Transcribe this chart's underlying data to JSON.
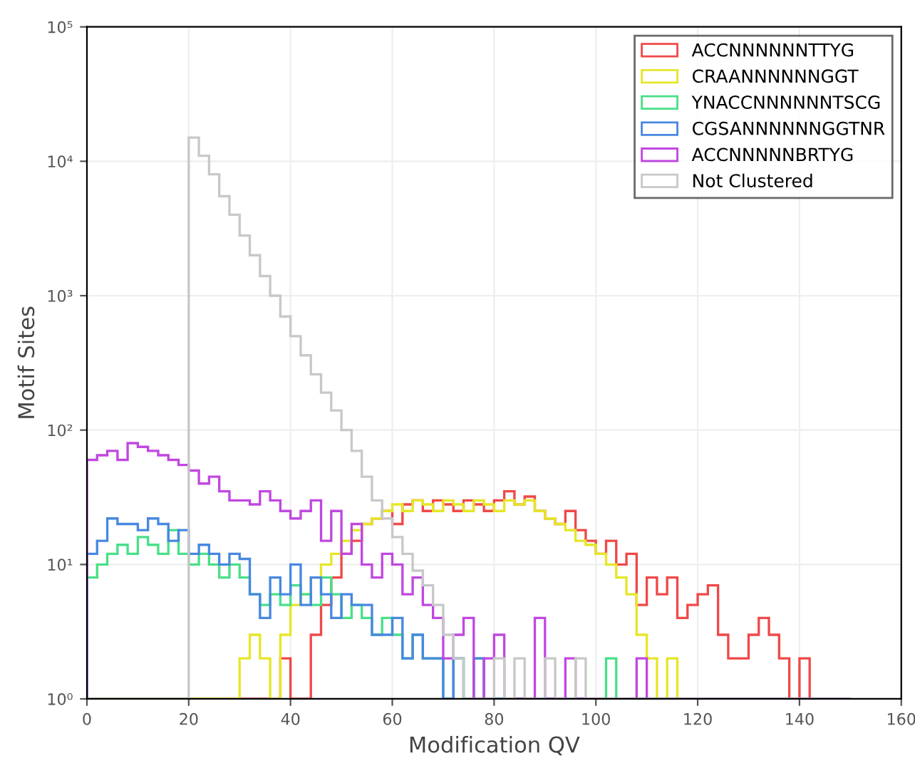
{
  "chart_data": {
    "type": "histogram",
    "xlabel": "Modification QV",
    "ylabel": "Motif Sites",
    "bins": [
      0,
      2,
      4,
      6,
      8,
      10,
      12,
      14,
      16,
      18,
      20,
      22,
      24,
      26,
      28,
      30,
      32,
      34,
      36,
      38,
      40,
      42,
      44,
      46,
      48,
      50,
      52,
      54,
      56,
      58,
      60,
      62,
      64,
      66,
      68,
      70,
      72,
      74,
      76,
      78,
      80,
      82,
      84,
      86,
      88,
      90,
      92,
      94,
      96,
      98,
      100,
      102,
      104,
      106,
      108,
      110,
      112,
      114,
      116,
      118,
      120,
      122,
      124,
      126,
      128,
      130,
      132,
      134,
      136,
      138,
      140,
      142,
      144,
      146,
      148,
      150
    ],
    "series": [
      {
        "name": "ACCNNNNNNTTYG",
        "color": "#f04848",
        "values": [
          1,
          1,
          1,
          1,
          1,
          1,
          1,
          1,
          1,
          1,
          1,
          1,
          1,
          1,
          1,
          1,
          1,
          1,
          1,
          2,
          1,
          1,
          3,
          5,
          8,
          12,
          15,
          20,
          22,
          25,
          20,
          28,
          30,
          25,
          30,
          28,
          25,
          30,
          28,
          25,
          30,
          35,
          28,
          32,
          25,
          22,
          20,
          25,
          18,
          15,
          12,
          15,
          10,
          12,
          5,
          8,
          6,
          8,
          4,
          5,
          6,
          7,
          3,
          2,
          2,
          3,
          4,
          3,
          2,
          1,
          2,
          1,
          1,
          1,
          1
        ]
      },
      {
        "name": "CRAANNNNNNGGT",
        "color": "#e6e628",
        "values": [
          1,
          1,
          1,
          1,
          1,
          1,
          1,
          1,
          1,
          1,
          1,
          1,
          1,
          1,
          1,
          2,
          3,
          2,
          1,
          3,
          5,
          6,
          8,
          10,
          12,
          15,
          18,
          20,
          22,
          25,
          28,
          25,
          30,
          28,
          25,
          30,
          28,
          25,
          30,
          28,
          25,
          30,
          28,
          30,
          25,
          22,
          20,
          18,
          15,
          14,
          12,
          10,
          8,
          6,
          3,
          2,
          1,
          2,
          1,
          1,
          1,
          1,
          1,
          1,
          1,
          1,
          1,
          1,
          1,
          1,
          1,
          1,
          1,
          1,
          1
        ]
      },
      {
        "name": "YNACCNNNNNNTSCG",
        "color": "#48e088",
        "values": [
          8,
          10,
          12,
          14,
          12,
          16,
          14,
          12,
          18,
          12,
          10,
          12,
          10,
          8,
          10,
          8,
          6,
          5,
          6,
          5,
          7,
          6,
          5,
          8,
          6,
          4,
          5,
          4,
          3,
          4,
          3,
          2,
          3,
          2,
          2,
          1,
          2,
          1,
          2,
          1,
          1,
          1,
          1,
          1,
          1,
          1,
          1,
          1,
          1,
          1,
          1,
          2,
          1,
          1,
          1,
          1,
          1,
          1,
          1,
          1,
          1,
          1,
          1,
          1,
          1,
          1,
          1,
          1,
          1,
          1,
          1,
          1,
          1,
          1,
          1
        ]
      },
      {
        "name": "CGSANNNNNNGGTNR",
        "color": "#4888e0",
        "values": [
          12,
          15,
          22,
          20,
          20,
          18,
          22,
          20,
          15,
          18,
          12,
          14,
          12,
          10,
          12,
          11,
          6,
          4,
          8,
          6,
          10,
          5,
          8,
          6,
          4,
          6,
          5,
          5,
          3,
          3,
          4,
          2,
          3,
          2,
          2,
          1,
          2,
          1,
          2,
          1,
          1,
          1,
          1,
          1,
          1,
          1,
          1,
          1,
          1,
          1,
          1,
          1,
          1,
          1,
          1,
          1,
          1,
          1,
          1,
          1,
          1,
          1,
          1,
          1,
          1,
          1,
          1,
          1,
          1,
          1,
          1,
          1,
          1,
          1,
          1
        ]
      },
      {
        "name": "ACCNNNNNBRTYG",
        "color": "#c048e0",
        "values": [
          60,
          65,
          70,
          60,
          80,
          75,
          70,
          65,
          60,
          55,
          50,
          40,
          45,
          35,
          30,
          30,
          28,
          35,
          30,
          25,
          22,
          25,
          30,
          15,
          25,
          12,
          20,
          10,
          8,
          12,
          10,
          6,
          8,
          5,
          4,
          2,
          3,
          4,
          1,
          2,
          3,
          1,
          1,
          1,
          4,
          1,
          1,
          2,
          1,
          1,
          1,
          1,
          1,
          1,
          2,
          1,
          1,
          1,
          1,
          1,
          1,
          1,
          1,
          1,
          1,
          1,
          1,
          1,
          1,
          1,
          1,
          1,
          1,
          1,
          1
        ]
      },
      {
        "name": "Not Clustered",
        "color": "#c8c8c8",
        "values": [
          1,
          1,
          1,
          1,
          1,
          1,
          1,
          1,
          1,
          1,
          15000,
          11000,
          8000,
          5500,
          4000,
          2800,
          2000,
          1400,
          1000,
          700,
          500,
          360,
          260,
          190,
          140,
          100,
          70,
          45,
          30,
          22,
          16,
          12,
          9,
          7,
          5,
          3,
          2,
          1,
          1,
          1,
          2,
          1,
          2,
          1,
          1,
          2,
          1,
          1,
          2,
          1,
          1,
          1,
          1,
          1,
          1,
          1,
          1,
          1,
          1,
          1,
          1,
          1,
          1,
          1,
          1,
          1,
          1,
          1,
          1,
          1,
          1,
          1,
          1,
          1,
          1
        ]
      }
    ],
    "log": "y",
    "xlim": [
      0,
      160
    ],
    "xticks": [
      0,
      20,
      40,
      60,
      80,
      100,
      120,
      140,
      160
    ],
    "ylim": [
      1,
      100000
    ],
    "yticks": [
      {
        "value": 1,
        "label": "10⁰"
      },
      {
        "value": 10,
        "label": "10¹"
      },
      {
        "value": 100,
        "label": "10²"
      },
      {
        "value": 1000,
        "label": "10³"
      },
      {
        "value": 10000,
        "label": "10⁴"
      },
      {
        "value": 100000,
        "label": "10⁵"
      }
    ],
    "grid": true,
    "legend": "top right"
  }
}
